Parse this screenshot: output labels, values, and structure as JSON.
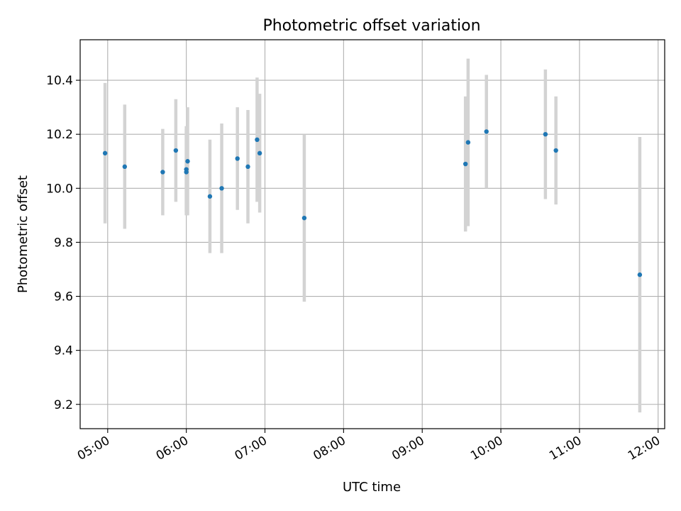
{
  "chart_data": {
    "type": "scatter",
    "title": "Photometric offset variation",
    "xlabel": "UTC time",
    "ylabel": "Photometric offset",
    "x_ticks": [
      "05:00",
      "06:00",
      "07:00",
      "08:00",
      "09:00",
      "10:00",
      "11:00",
      "12:00"
    ],
    "y_ticks": [
      "9.2",
      "9.4",
      "9.6",
      "9.8",
      "10.0",
      "10.2",
      "10.4"
    ],
    "xlim": [
      "04:39",
      "12:05"
    ],
    "ylim": [
      9.11,
      10.55
    ],
    "grid": true,
    "errorbar_color": "#d3d3d3",
    "marker_color": "#1f77b4",
    "points": [
      {
        "x": "04:58",
        "y": 10.13,
        "err": 0.26
      },
      {
        "x": "05:13",
        "y": 10.08,
        "err": 0.23
      },
      {
        "x": "05:42",
        "y": 10.06,
        "err": 0.16
      },
      {
        "x": "05:52",
        "y": 10.14,
        "err": 0.19
      },
      {
        "x": "06:00",
        "y": 10.06,
        "err": 0.16
      },
      {
        "x": "06:00",
        "y": 10.07,
        "err": 0.16
      },
      {
        "x": "06:01",
        "y": 10.1,
        "err": 0.2
      },
      {
        "x": "06:18",
        "y": 9.97,
        "err": 0.21
      },
      {
        "x": "06:27",
        "y": 10.0,
        "err": 0.24
      },
      {
        "x": "06:39",
        "y": 10.11,
        "err": 0.19
      },
      {
        "x": "06:47",
        "y": 10.08,
        "err": 0.21
      },
      {
        "x": "06:54",
        "y": 10.18,
        "err": 0.23
      },
      {
        "x": "06:56",
        "y": 10.13,
        "err": 0.22
      },
      {
        "x": "07:30",
        "y": 9.89,
        "err": 0.31
      },
      {
        "x": "09:33",
        "y": 10.09,
        "err": 0.25
      },
      {
        "x": "09:35",
        "y": 10.17,
        "err": 0.31
      },
      {
        "x": "09:49",
        "y": 10.21,
        "err": 0.21
      },
      {
        "x": "10:34",
        "y": 10.2,
        "err": 0.24
      },
      {
        "x": "10:42",
        "y": 10.14,
        "err": 0.2
      },
      {
        "x": "11:46",
        "y": 9.68,
        "err": 0.51
      }
    ]
  }
}
